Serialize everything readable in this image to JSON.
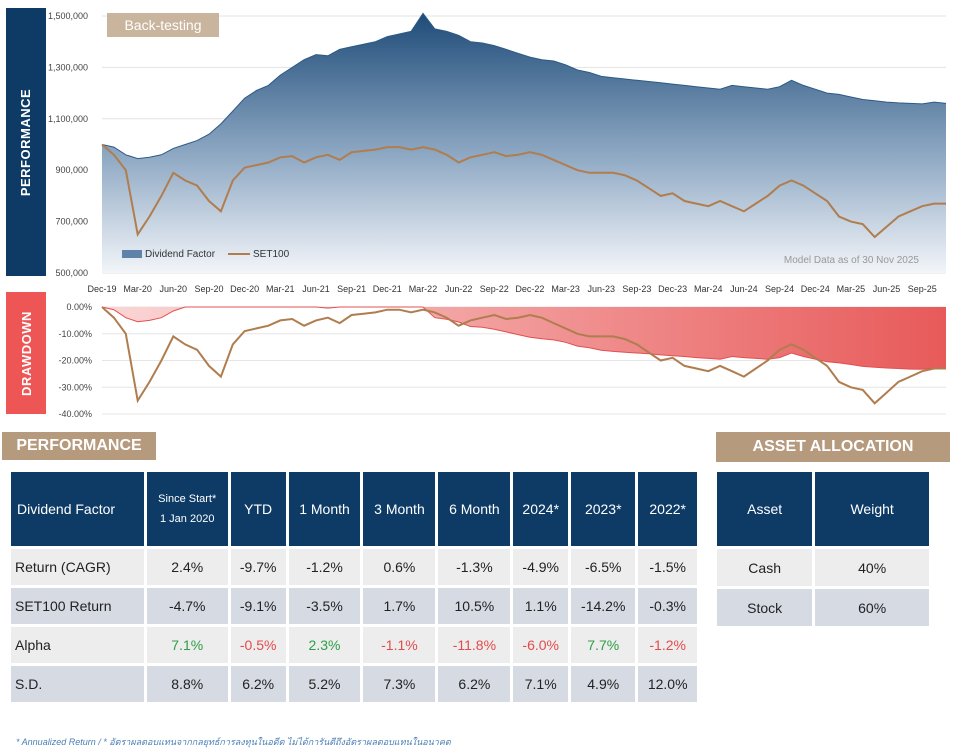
{
  "chart_data": [
    {
      "type": "area",
      "badge": "Back-testing",
      "side_label": "PERFORMANCE",
      "y_ticks": [
        "1,500,000",
        "1,300,000",
        "1,100,000",
        "900,000",
        "700,000",
        "500,000"
      ],
      "ylim": [
        500000,
        1500000
      ],
      "x_ticks": [
        "Dec-19",
        "Mar-20",
        "Jun-20",
        "Sep-20",
        "Dec-20",
        "Mar-21",
        "Jun-21",
        "Sep-21",
        "Dec-21",
        "Mar-22",
        "Jun-22",
        "Sep-22",
        "Dec-22",
        "Mar-23",
        "Jun-23",
        "Sep-23",
        "Dec-23",
        "Mar-24",
        "Jun-24",
        "Sep-24",
        "Dec-24",
        "Mar-25",
        "Jun-25",
        "Sep-25"
      ],
      "note": "Model Data as of 30 Nov 2025",
      "series": [
        {
          "name": "Dividend Factor",
          "color": "#3d6a93",
          "x": [
            "Dec-19",
            "Jan-20",
            "Feb-20",
            "Mar-20",
            "Apr-20",
            "May-20",
            "Jun-20",
            "Jul-20",
            "Aug-20",
            "Sep-20",
            "Oct-20",
            "Nov-20",
            "Dec-20",
            "Jan-21",
            "Feb-21",
            "Mar-21",
            "Apr-21",
            "May-21",
            "Jun-21",
            "Jul-21",
            "Aug-21",
            "Sep-21",
            "Oct-21",
            "Nov-21",
            "Dec-21",
            "Jan-22",
            "Feb-22",
            "Mar-22",
            "Apr-22",
            "May-22",
            "Jun-22",
            "Jul-22",
            "Aug-22",
            "Sep-22",
            "Oct-22",
            "Nov-22",
            "Dec-22",
            "Jan-23",
            "Feb-23",
            "Mar-23",
            "Apr-23",
            "May-23",
            "Jun-23",
            "Jul-23",
            "Aug-23",
            "Sep-23",
            "Oct-23",
            "Nov-23",
            "Dec-23",
            "Jan-24",
            "Feb-24",
            "Mar-24",
            "Apr-24",
            "May-24",
            "Jun-24",
            "Jul-24",
            "Aug-24",
            "Sep-24",
            "Oct-24",
            "Nov-24",
            "Dec-24",
            "Jan-25",
            "Feb-25",
            "Mar-25",
            "Apr-25",
            "May-25",
            "Jun-25",
            "Jul-25",
            "Aug-25",
            "Sep-25",
            "Oct-25",
            "Nov-25"
          ],
          "values": [
            1000000,
            990000,
            960000,
            945000,
            950000,
            960000,
            985000,
            1000000,
            1015000,
            1040000,
            1080000,
            1130000,
            1180000,
            1210000,
            1230000,
            1270000,
            1300000,
            1330000,
            1350000,
            1345000,
            1370000,
            1380000,
            1390000,
            1400000,
            1420000,
            1430000,
            1440000,
            1510000,
            1450000,
            1440000,
            1425000,
            1400000,
            1395000,
            1385000,
            1370000,
            1355000,
            1340000,
            1330000,
            1325000,
            1310000,
            1290000,
            1280000,
            1265000,
            1260000,
            1255000,
            1250000,
            1245000,
            1240000,
            1235000,
            1230000,
            1225000,
            1220000,
            1215000,
            1230000,
            1225000,
            1220000,
            1215000,
            1225000,
            1250000,
            1230000,
            1215000,
            1200000,
            1195000,
            1185000,
            1175000,
            1170000,
            1165000,
            1162000,
            1160000,
            1158000,
            1165000,
            1160000
          ]
        },
        {
          "name": "SET100",
          "color": "#b07d4e",
          "x": [
            "Dec-19",
            "Jan-20",
            "Feb-20",
            "Mar-20",
            "Apr-20",
            "May-20",
            "Jun-20",
            "Jul-20",
            "Aug-20",
            "Sep-20",
            "Oct-20",
            "Nov-20",
            "Dec-20",
            "Jan-21",
            "Feb-21",
            "Mar-21",
            "Apr-21",
            "May-21",
            "Jun-21",
            "Jul-21",
            "Aug-21",
            "Sep-21",
            "Oct-21",
            "Nov-21",
            "Dec-21",
            "Jan-22",
            "Feb-22",
            "Mar-22",
            "Apr-22",
            "May-22",
            "Jun-22",
            "Jul-22",
            "Aug-22",
            "Sep-22",
            "Oct-22",
            "Nov-22",
            "Dec-22",
            "Jan-23",
            "Feb-23",
            "Mar-23",
            "Apr-23",
            "May-23",
            "Jun-23",
            "Jul-23",
            "Aug-23",
            "Sep-23",
            "Oct-23",
            "Nov-23",
            "Dec-23",
            "Jan-24",
            "Feb-24",
            "Mar-24",
            "Apr-24",
            "May-24",
            "Jun-24",
            "Jul-24",
            "Aug-24",
            "Sep-24",
            "Oct-24",
            "Nov-24",
            "Dec-24",
            "Jan-25",
            "Feb-25",
            "Mar-25",
            "Apr-25",
            "May-25",
            "Jun-25",
            "Jul-25",
            "Aug-25",
            "Sep-25",
            "Oct-25",
            "Nov-25"
          ],
          "values": [
            1000000,
            960000,
            900000,
            650000,
            720000,
            800000,
            890000,
            860000,
            840000,
            780000,
            740000,
            860000,
            910000,
            920000,
            930000,
            950000,
            955000,
            930000,
            950000,
            960000,
            940000,
            970000,
            975000,
            980000,
            990000,
            990000,
            980000,
            990000,
            980000,
            960000,
            930000,
            950000,
            960000,
            970000,
            955000,
            960000,
            970000,
            960000,
            940000,
            920000,
            900000,
            890000,
            890000,
            890000,
            880000,
            860000,
            830000,
            800000,
            810000,
            780000,
            770000,
            760000,
            780000,
            760000,
            740000,
            770000,
            800000,
            840000,
            860000,
            840000,
            810000,
            780000,
            720000,
            700000,
            690000,
            640000,
            680000,
            720000,
            740000,
            760000,
            770000,
            770000
          ]
        }
      ]
    },
    {
      "type": "area",
      "side_label": "DRAWDOWN",
      "y_ticks": [
        "0.00%",
        "-10.00%",
        "-20.00%",
        "-30.00%",
        "-40.00%"
      ],
      "ylim": [
        -40,
        0
      ],
      "series": [
        {
          "name": "Dividend Factor",
          "color": "#e86a6a",
          "values": [
            0,
            -1,
            -4,
            -5.5,
            -5,
            -4,
            -1.5,
            0,
            0,
            0,
            0,
            0,
            0,
            0,
            0,
            0,
            0,
            0,
            0,
            -0.4,
            0,
            0,
            0,
            0,
            0,
            0,
            0,
            0,
            -4,
            -4.6,
            -5.6,
            -7.3,
            -7.6,
            -8.3,
            -9.3,
            -10.3,
            -11.3,
            -11.9,
            -12.3,
            -13.2,
            -14.6,
            -15.2,
            -16.2,
            -16.6,
            -16.9,
            -17.2,
            -17.5,
            -17.9,
            -18.2,
            -18.5,
            -18.9,
            -19.2,
            -19.5,
            -18.5,
            -18.9,
            -19.2,
            -19.5,
            -18.9,
            -17.2,
            -18.5,
            -19.5,
            -20.5,
            -20.9,
            -21.5,
            -22.2,
            -22.5,
            -22.8,
            -23,
            -23.2,
            -23.3,
            -22.8,
            -23.2
          ]
        },
        {
          "name": "SET100",
          "color": "#b07d4e",
          "values": [
            0,
            -4,
            -10,
            -35,
            -28,
            -20,
            -11,
            -14,
            -16,
            -22,
            -26,
            -14,
            -9,
            -8,
            -7,
            -5,
            -4.5,
            -7,
            -5,
            -4,
            -6,
            -3,
            -2.5,
            -2,
            -1,
            -1,
            -2,
            -1,
            -2,
            -4,
            -7,
            -5,
            -4,
            -3,
            -4.5,
            -4,
            -3,
            -4,
            -6,
            -8,
            -10,
            -11,
            -11,
            -11,
            -12,
            -14,
            -17,
            -20,
            -19,
            -22,
            -23,
            -24,
            -22,
            -24,
            -26,
            -23,
            -20,
            -16,
            -14,
            -16,
            -19,
            -22,
            -28,
            -30,
            -31,
            -36,
            -32,
            -28,
            -26,
            -24,
            -23,
            -23
          ]
        }
      ]
    }
  ],
  "performance": {
    "title": "PERFORMANCE",
    "fund_name": "Dividend Factor",
    "columns": [
      "Since Start*",
      "1 Jan 2020",
      "YTD",
      "1 Month",
      "3 Month",
      "6 Month",
      "2024*",
      "2023*",
      "2022*"
    ],
    "rows": [
      {
        "label": "Return (CAGR)",
        "values": [
          "2.4%",
          "-9.7%",
          "-1.2%",
          "0.6%",
          "-1.3%",
          "-4.9%",
          "-6.5%",
          "-1.5%"
        ]
      },
      {
        "label": "SET100 Return",
        "values": [
          "-4.7%",
          "-9.1%",
          "-3.5%",
          "1.7%",
          "10.5%",
          "1.1%",
          "-14.2%",
          "-0.3%"
        ]
      },
      {
        "label": "Alpha",
        "values": [
          "7.1%",
          "-0.5%",
          "2.3%",
          "-1.1%",
          "-11.8%",
          "-6.0%",
          "7.7%",
          "-1.2%"
        ],
        "signs": [
          "pos",
          "neg",
          "pos",
          "neg",
          "neg",
          "neg",
          "pos",
          "neg"
        ]
      },
      {
        "label": "S.D.",
        "values": [
          "8.8%",
          "6.2%",
          "5.2%",
          "7.3%",
          "6.2%",
          "7.1%",
          "4.9%",
          "12.0%"
        ]
      }
    ],
    "colors": {
      "positive": "#2e9e48",
      "negative": "#e34b4b"
    }
  },
  "allocation": {
    "title": "ASSET ALLOCATION",
    "headers": [
      "Asset",
      "Weight"
    ],
    "rows": [
      {
        "asset": "Cash",
        "weight": "40%"
      },
      {
        "asset": "Stock",
        "weight": "60%"
      }
    ]
  },
  "footnote": "* Annualized Return / * อัตราผลตอบแทนจากกลยุทธ์การลงทุนในอดีต ไม่ได้การันตีถึงอัตราผลตอบแทนในอนาคต"
}
